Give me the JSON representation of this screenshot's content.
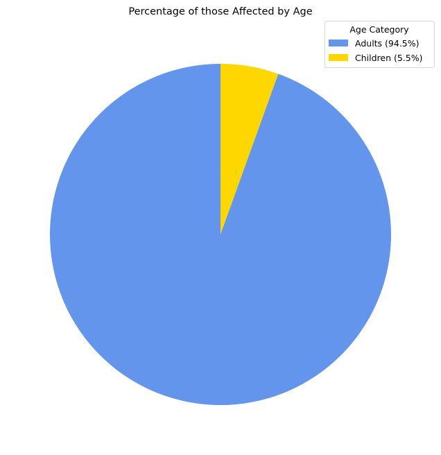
{
  "chart_data": {
    "type": "pie",
    "title": "Percentage of those Affected by Age",
    "categories": [
      "Adults",
      "Children"
    ],
    "values": [
      94.5,
      5.5
    ],
    "colors": [
      "#6495ED",
      "#FFD700"
    ],
    "start_angle_deg": 90,
    "direction": "clockwise",
    "legend": {
      "title": "Age Category",
      "placement": "top-right",
      "entries": [
        "Adults (94.5%)",
        "Children (5.5%)"
      ]
    }
  }
}
